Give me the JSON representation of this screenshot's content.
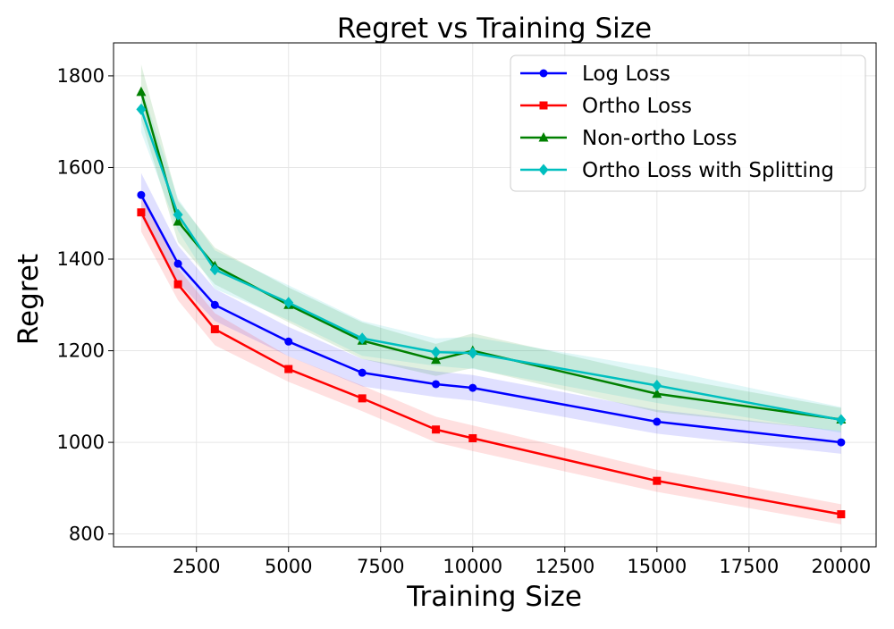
{
  "chart_data": {
    "type": "line",
    "title": "Regret vs Training Size",
    "xlabel": "Training Size",
    "ylabel": "Regret",
    "x": [
      1000,
      2000,
      3000,
      5000,
      7000,
      9000,
      10000,
      15000,
      20000
    ],
    "xlim": [
      250,
      20950
    ],
    "ylim": [
      772,
      1872
    ],
    "xticks": [
      2500,
      5000,
      7500,
      10000,
      12500,
      15000,
      17500,
      20000
    ],
    "yticks": [
      800,
      1000,
      1200,
      1400,
      1600,
      1800
    ],
    "grid": true,
    "legend_position": "top-right",
    "series": [
      {
        "name": "Log Loss",
        "color": "#0000ff",
        "marker": "circle",
        "values": [
          1540,
          1390,
          1300,
          1220,
          1152,
          1127,
          1119,
          1045,
          1000
        ],
        "band_half_width": [
          48,
          40,
          35,
          32,
          30,
          28,
          28,
          26,
          25
        ]
      },
      {
        "name": "Ortho Loss",
        "color": "#ff0000",
        "marker": "square",
        "values": [
          1502,
          1345,
          1247,
          1160,
          1096,
          1028,
          1009,
          916,
          843
        ],
        "band_half_width": [
          42,
          35,
          35,
          28,
          28,
          28,
          28,
          24,
          22
        ]
      },
      {
        "name": "Non-ortho Loss",
        "color": "#008000",
        "marker": "triangle",
        "values": [
          1765,
          1482,
          1385,
          1300,
          1222,
          1180,
          1200,
          1106,
          1050
        ],
        "band_half_width": [
          60,
          45,
          40,
          38,
          40,
          35,
          38,
          40,
          25
        ]
      },
      {
        "name": "Ortho Loss with Splitting",
        "color": "#00bfbf",
        "marker": "diamond",
        "values": [
          1727,
          1497,
          1377,
          1305,
          1227,
          1197,
          1195,
          1124,
          1049
        ],
        "band_half_width": [
          50,
          35,
          42,
          38,
          38,
          30,
          35,
          38,
          28
        ]
      }
    ]
  }
}
